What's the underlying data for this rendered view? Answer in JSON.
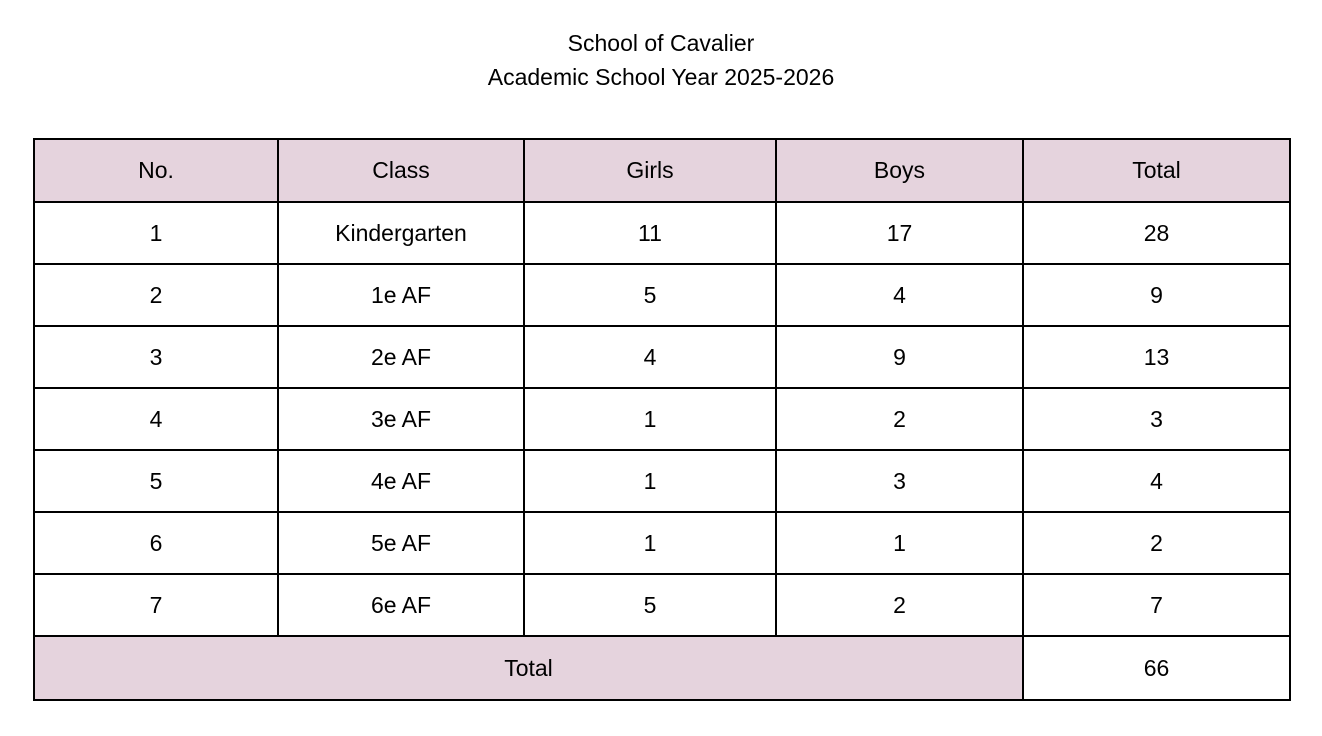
{
  "title": {
    "line1": "School of Cavalier",
    "line2": "Academic School Year 2025-2026"
  },
  "table": {
    "headers": [
      "No.",
      "Class",
      "Girls",
      "Boys",
      "Total"
    ],
    "columns_keys": [
      "no",
      "class",
      "girls",
      "boys",
      "total"
    ],
    "rows": [
      {
        "no": "1",
        "class": "Kindergarten",
        "girls": "11",
        "boys": "17",
        "total": "28"
      },
      {
        "no": "2",
        "class": "1e AF",
        "girls": "5",
        "boys": "4",
        "total": "9"
      },
      {
        "no": "3",
        "class": "2e AF",
        "girls": "4",
        "boys": "9",
        "total": "13"
      },
      {
        "no": "4",
        "class": "3e AF",
        "girls": "1",
        "boys": "2",
        "total": "3"
      },
      {
        "no": "5",
        "class": "4e AF",
        "girls": "1",
        "boys": "3",
        "total": "4"
      },
      {
        "no": "6",
        "class": "5e AF",
        "girls": "1",
        "boys": "1",
        "total": "2"
      },
      {
        "no": "7",
        "class": "6e AF",
        "girls": "5",
        "boys": "2",
        "total": "7"
      }
    ],
    "footer": {
      "label": "Total",
      "value": "66"
    }
  },
  "colors": {
    "header_bg": "#e5d3dd",
    "border": "#000000",
    "page_bg": "#ffffff"
  }
}
